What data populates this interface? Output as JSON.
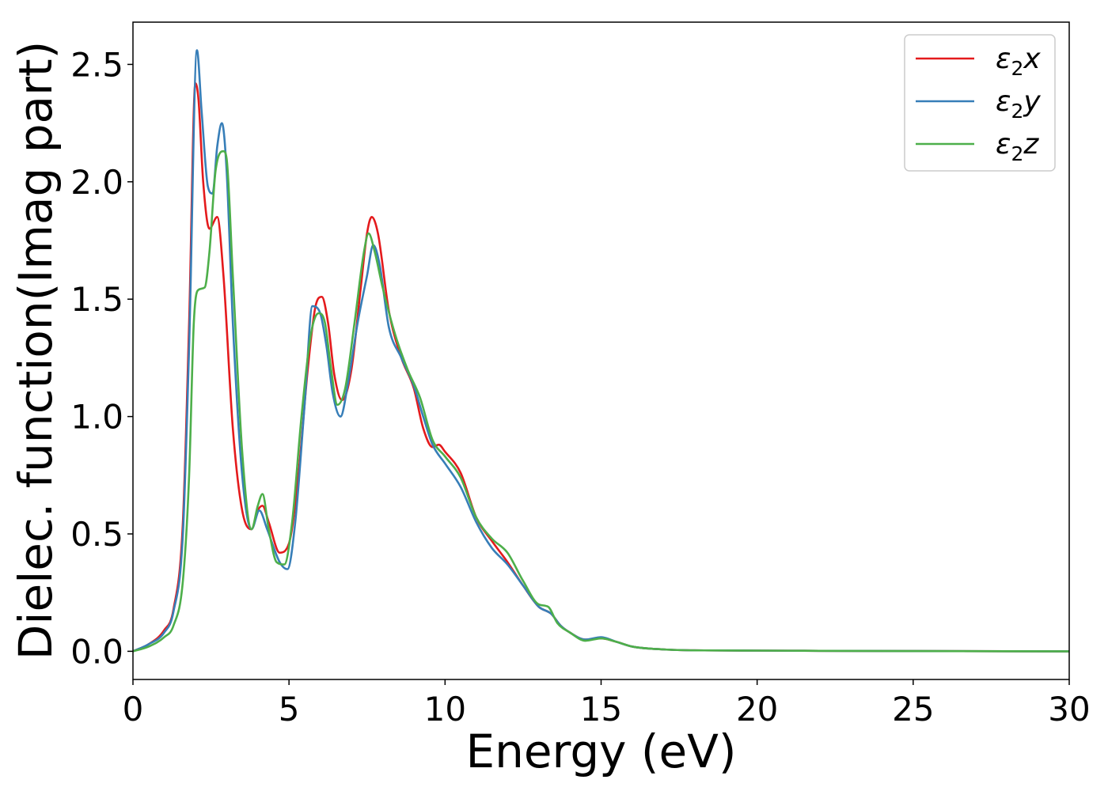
{
  "chart_data": {
    "type": "line",
    "title": "",
    "xlabel": "Energy (eV)",
    "ylabel": "Dielec. function(Imag part)",
    "xlim": [
      0,
      30
    ],
    "ylim": [
      -0.12,
      2.68
    ],
    "xticks": [
      "0",
      "5",
      "10",
      "15",
      "20",
      "25",
      "30"
    ],
    "yticks": [
      "0.0",
      "0.5",
      "1.0",
      "1.5",
      "2.0",
      "2.5"
    ],
    "grid": false,
    "legend_position": "top-right",
    "series": [
      {
        "name": "ε2x",
        "legend_base": "ε",
        "legend_sub": "2",
        "legend_suffix": "x",
        "color": "#e41a1c",
        "x": [
          0,
          0.5,
          1.0,
          1.3,
          1.6,
          1.8,
          2.0,
          2.1,
          2.25,
          2.45,
          2.7,
          2.9,
          3.2,
          3.5,
          3.8,
          4.0,
          4.15,
          4.35,
          4.7,
          5.0,
          5.3,
          5.6,
          5.85,
          6.05,
          6.25,
          6.45,
          6.7,
          7.0,
          7.3,
          7.5,
          7.65,
          7.85,
          8.2,
          8.6,
          9.0,
          9.3,
          9.6,
          9.8,
          10.0,
          10.5,
          11.0,
          11.5,
          12.0,
          12.5,
          13.0,
          13.4,
          13.7,
          14.0,
          14.5,
          15.0,
          15.5,
          16.0,
          17.0,
          18.0,
          20.0,
          22.0,
          25.0,
          30.0
        ],
        "y": [
          0.0,
          0.03,
          0.09,
          0.18,
          0.55,
          1.4,
          2.42,
          2.35,
          2.0,
          1.8,
          1.85,
          1.6,
          0.95,
          0.6,
          0.52,
          0.6,
          0.62,
          0.55,
          0.42,
          0.46,
          0.75,
          1.2,
          1.47,
          1.51,
          1.4,
          1.18,
          1.07,
          1.2,
          1.55,
          1.78,
          1.85,
          1.78,
          1.45,
          1.25,
          1.12,
          0.95,
          0.87,
          0.88,
          0.85,
          0.76,
          0.57,
          0.47,
          0.38,
          0.28,
          0.19,
          0.16,
          0.11,
          0.08,
          0.05,
          0.055,
          0.04,
          0.02,
          0.008,
          0.004,
          0.003,
          0.002,
          0.001,
          0.0
        ]
      },
      {
        "name": "ε2y",
        "legend_base": "ε",
        "legend_sub": "2",
        "legend_suffix": "y",
        "color": "#377eb8",
        "x": [
          0,
          0.5,
          1.0,
          1.3,
          1.6,
          1.8,
          2.05,
          2.2,
          2.4,
          2.55,
          2.7,
          2.85,
          3.0,
          3.2,
          3.5,
          3.8,
          4.05,
          4.3,
          4.7,
          4.95,
          5.2,
          5.5,
          5.75,
          6.0,
          6.2,
          6.4,
          6.65,
          6.9,
          7.2,
          7.5,
          7.7,
          7.9,
          8.2,
          8.6,
          9.0,
          9.3,
          9.6,
          10.0,
          10.5,
          11.0,
          11.5,
          12.0,
          12.5,
          13.0,
          13.4,
          13.7,
          14.0,
          14.5,
          15.0,
          15.5,
          16.0,
          17.0,
          18.0,
          20.0,
          22.0,
          25.0,
          30.0
        ],
        "y": [
          0.0,
          0.03,
          0.08,
          0.17,
          0.5,
          1.3,
          2.56,
          2.3,
          1.98,
          1.95,
          2.15,
          2.25,
          2.05,
          1.4,
          0.75,
          0.52,
          0.6,
          0.52,
          0.38,
          0.35,
          0.55,
          1.05,
          1.47,
          1.44,
          1.3,
          1.1,
          1.0,
          1.15,
          1.4,
          1.6,
          1.73,
          1.65,
          1.38,
          1.25,
          1.13,
          1.0,
          0.88,
          0.8,
          0.7,
          0.55,
          0.44,
          0.37,
          0.28,
          0.19,
          0.16,
          0.11,
          0.08,
          0.05,
          0.06,
          0.04,
          0.02,
          0.008,
          0.004,
          0.003,
          0.002,
          0.001,
          0.0
        ]
      },
      {
        "name": "ε2z",
        "legend_base": "ε",
        "legend_sub": "2",
        "legend_suffix": "z",
        "color": "#4daf4a",
        "x": [
          0,
          0.5,
          1.0,
          1.3,
          1.6,
          1.8,
          1.95,
          2.1,
          2.3,
          2.45,
          2.65,
          2.9,
          3.0,
          3.2,
          3.5,
          3.8,
          4.0,
          4.15,
          4.35,
          4.6,
          4.85,
          5.1,
          5.4,
          5.7,
          5.95,
          6.15,
          6.35,
          6.55,
          6.8,
          7.1,
          7.4,
          7.55,
          7.75,
          8.0,
          8.4,
          8.8,
          9.2,
          9.6,
          10.0,
          10.5,
          11.0,
          11.5,
          12.0,
          12.5,
          13.0,
          13.3,
          13.6,
          14.0,
          14.5,
          15.0,
          15.5,
          16.0,
          17.0,
          18.0,
          20.0,
          22.0,
          25.0,
          30.0
        ],
        "y": [
          0.0,
          0.02,
          0.06,
          0.11,
          0.3,
          0.75,
          1.4,
          1.54,
          1.55,
          1.7,
          2.05,
          2.13,
          2.1,
          1.6,
          0.85,
          0.52,
          0.62,
          0.67,
          0.52,
          0.38,
          0.37,
          0.55,
          1.0,
          1.35,
          1.44,
          1.4,
          1.2,
          1.05,
          1.12,
          1.4,
          1.7,
          1.78,
          1.7,
          1.55,
          1.35,
          1.2,
          1.08,
          0.9,
          0.83,
          0.74,
          0.57,
          0.48,
          0.42,
          0.3,
          0.2,
          0.19,
          0.12,
          0.08,
          0.045,
          0.055,
          0.04,
          0.02,
          0.008,
          0.004,
          0.003,
          0.002,
          0.001,
          0.0
        ]
      }
    ]
  }
}
